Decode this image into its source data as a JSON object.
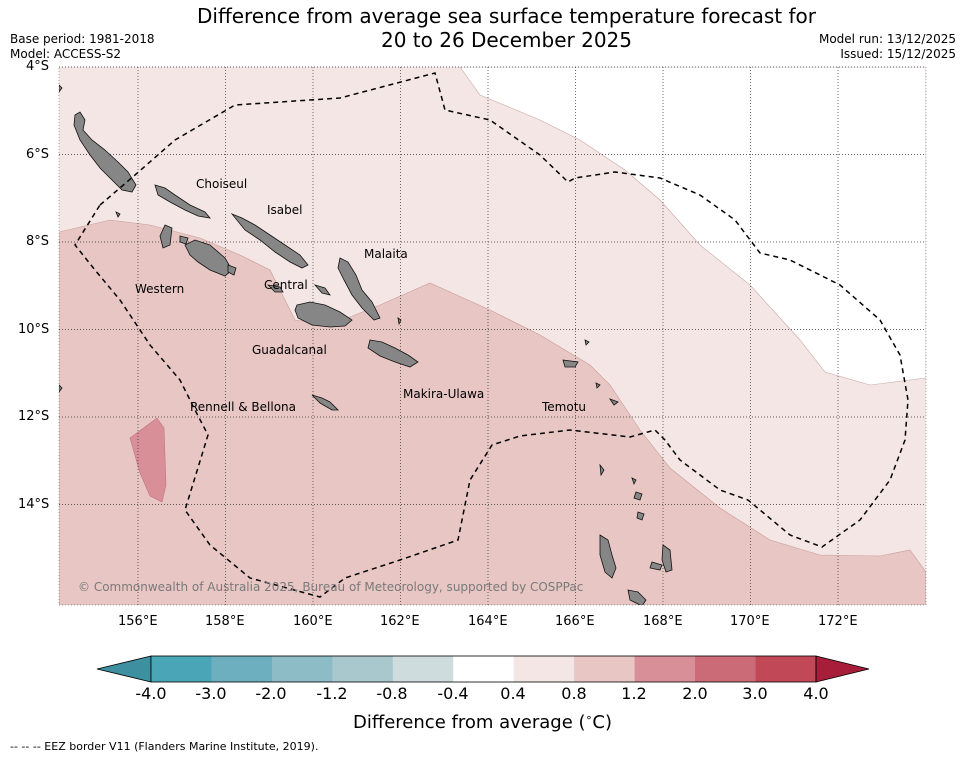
{
  "title": {
    "line1": "Difference from average sea surface temperature forecast for",
    "line2": "20 to 26 December 2025"
  },
  "meta_left": {
    "base_period": "Base period: 1981-2018",
    "model": "Model: ACCESS-S2"
  },
  "meta_right": {
    "model_run": "Model run: 13/12/2025",
    "issued": "Issued: 15/12/2025"
  },
  "map": {
    "latitude_labels": [
      "4°S",
      "6°S",
      "8°S",
      "10°S",
      "12°S",
      "14°S"
    ],
    "longitude_labels": [
      "156°E",
      "158°E",
      "160°E",
      "162°E",
      "164°E",
      "166°E",
      "168°E",
      "170°E",
      "172°E"
    ],
    "place_labels": [
      "Choiseul",
      "Isabel",
      "Malaita",
      "Western",
      "Central",
      "Guadalcanal",
      "Rennell & Bellona",
      "Makira-Ulawa",
      "Temotu"
    ],
    "copyright": "© Commonwealth of Australia 2025, Bureau of Meteorology, supported by COSPPac",
    "colors": {
      "band_0_4_0_8": "#f4e6e4",
      "band_0_8_1_2": "#e7c6c3",
      "band_1_2_2_0": "#d98f98",
      "land": "#868686",
      "grid": "#333333"
    }
  },
  "colorbar": {
    "tick_labels": [
      "-4.0",
      "-3.0",
      "-2.0",
      "-1.2",
      "-0.8",
      "-0.4",
      "0.4",
      "0.8",
      "1.2",
      "2.0",
      "3.0",
      "4.0"
    ],
    "colors": [
      "#3e8f9f",
      "#4aa5b6",
      "#6daebf",
      "#8dbbc6",
      "#a9c8cd",
      "#cfdcde",
      "#ffffff",
      "#f4e6e4",
      "#e7c6c3",
      "#d98f98",
      "#cb6b77",
      "#c04857",
      "#a81d3a"
    ],
    "title": "Difference from average (",
    "title_unit": "C)",
    "degree": "∘"
  },
  "footer": {
    "eez_note": "--  --  -- EEZ border V11 (Flanders Marine Institute, 2019)."
  }
}
